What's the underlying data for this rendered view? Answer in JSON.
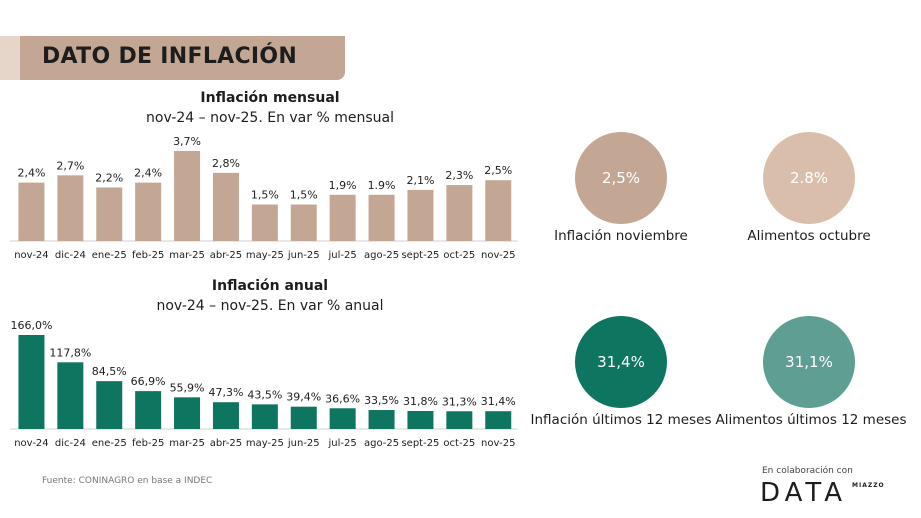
{
  "header": {
    "title": "DATO DE INFLACIÓN"
  },
  "chart_data": [
    {
      "type": "bar",
      "title": "Inflación mensual",
      "subtitle": "nov-24 – nov-25. En var % mensual",
      "categories": [
        "nov-24",
        "dic-24",
        "ene-25",
        "feb-25",
        "mar-25",
        "abr-25",
        "may-25",
        "jun-25",
        "jul-25",
        "ago-25",
        "sept-25",
        "oct-25",
        "nov-25"
      ],
      "values": [
        2.4,
        2.7,
        2.2,
        2.4,
        3.7,
        2.8,
        1.5,
        1.5,
        1.9,
        1.9,
        2.1,
        2.3,
        2.5
      ],
      "labels": [
        "2,4%",
        "2,7%",
        "2,2%",
        "2,4%",
        "3,7%",
        "2,8%",
        "1,5%",
        "1,5%",
        "1,9%",
        "1.9%",
        "2,1%",
        "2,3%",
        "2,5%"
      ],
      "color": "#c3a794",
      "ylim": [
        0,
        3.7
      ]
    },
    {
      "type": "bar",
      "title": "Inflación anual",
      "subtitle": "nov-24 – nov-25. En var % anual",
      "categories": [
        "nov-24",
        "dic-24",
        "ene-25",
        "feb-25",
        "mar-25",
        "abr-25",
        "may-25",
        "jun-25",
        "jul-25",
        "ago-25",
        "sept-25",
        "oct-25",
        "nov-25"
      ],
      "values": [
        166.0,
        117.8,
        84.5,
        66.9,
        55.9,
        47.3,
        43.5,
        39.4,
        36.6,
        33.5,
        31.8,
        31.3,
        31.4
      ],
      "labels": [
        "166,0%",
        "117,8%",
        "84,5%",
        "66,9%",
        "55,9%",
        "47,3%",
        "43,5%",
        "39,4%",
        "36,6%",
        "33,5%",
        "31,8%",
        "31,3%",
        "31,4%"
      ],
      "color": "#0e7560",
      "ylim": [
        0,
        166
      ]
    }
  ],
  "kpis": [
    {
      "value": "2,5%",
      "label": "Inflación noviembre",
      "color": "#c3a794"
    },
    {
      "value": "2.8%",
      "label": "Alimentos octubre",
      "color": "#d9bfab"
    },
    {
      "value": "31,4%",
      "label": "Inflación últimos 12 meses",
      "color": "#0e7560"
    },
    {
      "value": "31,1%",
      "label": "Alimentos últimos 12 meses",
      "color": "#5e9e93"
    }
  ],
  "footer": {
    "source": "Fuente: CONINAGRO en base a INDEC",
    "collab": "En colaboración con",
    "brand": "DATA",
    "brand_sub": "MIAZZO"
  }
}
